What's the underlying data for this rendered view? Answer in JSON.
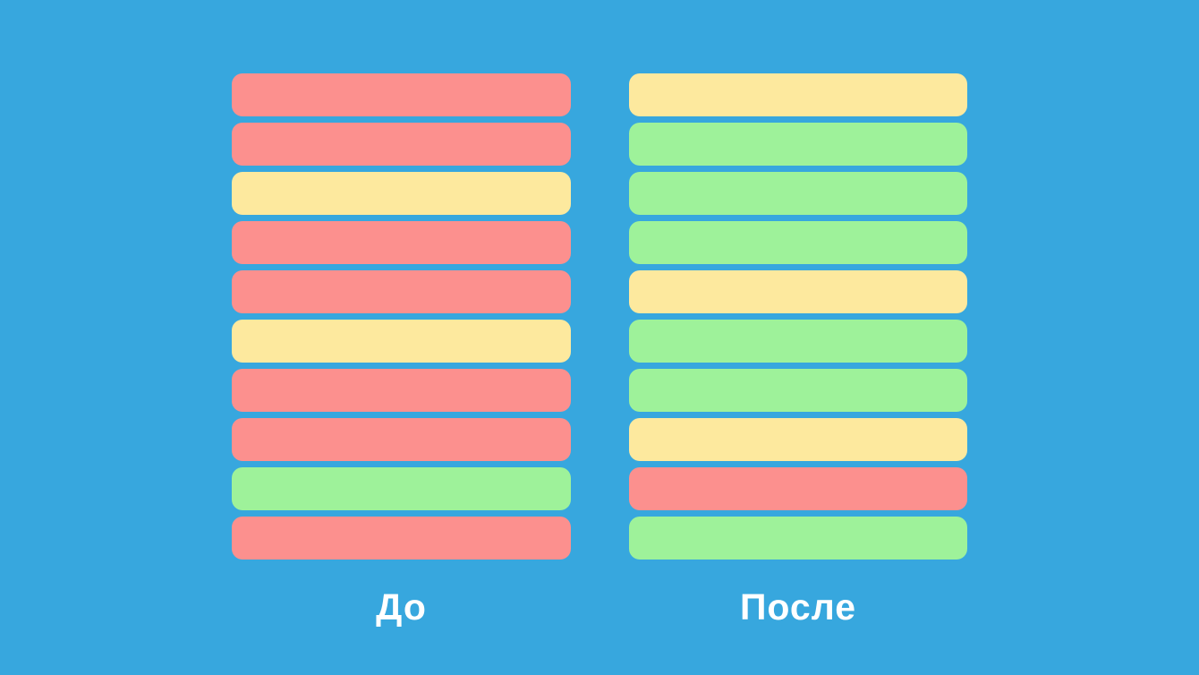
{
  "background_color": "#37A7DE",
  "label_color": "#FFFFFF",
  "bar_colors": {
    "red": "#FC908E",
    "yellow": "#FDE99E",
    "green": "#9EF29A"
  },
  "columns": [
    {
      "id": "before",
      "label": "До",
      "bars": [
        "red",
        "red",
        "yellow",
        "red",
        "red",
        "yellow",
        "red",
        "red",
        "green",
        "red"
      ]
    },
    {
      "id": "after",
      "label": "После",
      "bars": [
        "yellow",
        "green",
        "green",
        "green",
        "yellow",
        "green",
        "green",
        "yellow",
        "red",
        "green"
      ]
    }
  ]
}
